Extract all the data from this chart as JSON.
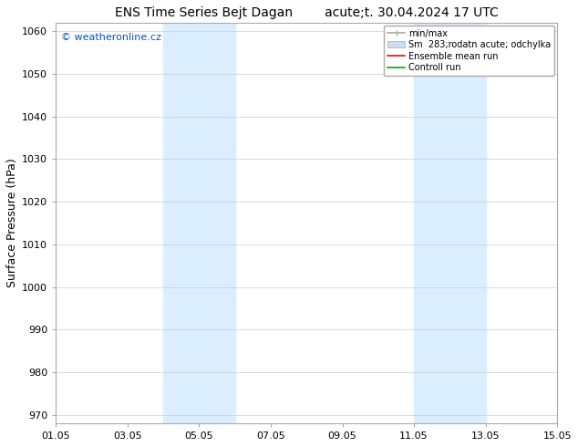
{
  "title_left": "ENS Time Series Bejt Dagan",
  "title_right": "acute;t. 30.04.2024 17 UTC",
  "ylabel": "Surface Pressure (hPa)",
  "ylim": [
    968,
    1062
  ],
  "yticks": [
    970,
    980,
    990,
    1000,
    1010,
    1020,
    1030,
    1040,
    1050,
    1060
  ],
  "xlim_start": 0,
  "xlim_end": 14,
  "xtick_positions": [
    0,
    2,
    4,
    6,
    8,
    10,
    12,
    14
  ],
  "xtick_labels": [
    "01.05",
    "03.05",
    "05.05",
    "07.05",
    "09.05",
    "11.05",
    "13.05",
    "15.05"
  ],
  "shaded_bands": [
    {
      "x_start": 3.0,
      "x_end": 5.0
    },
    {
      "x_start": 10.0,
      "x_end": 12.0
    }
  ],
  "shade_color": "#daeeff",
  "background_color": "#ffffff",
  "watermark_text": "© weatheronline.cz",
  "watermark_color": "#0055cc",
  "legend_item_minmax": "min/max",
  "legend_item_spread": "Sm  283;rodatn acute; odchylka",
  "legend_item_ensemble": "Ensemble mean run",
  "legend_item_control": "Controll run",
  "legend_color_minmax": "#aaaaaa",
  "legend_color_spread": "#ccddee",
  "legend_color_ensemble": "#ff0000",
  "legend_color_control": "#00aa00",
  "grid_color": "#cccccc",
  "spine_color": "#aaaaaa",
  "tick_fontsize": 8,
  "label_fontsize": 9,
  "title_fontsize": 10,
  "legend_fontsize": 7,
  "fig_width": 6.34,
  "fig_height": 4.9,
  "dpi": 100
}
